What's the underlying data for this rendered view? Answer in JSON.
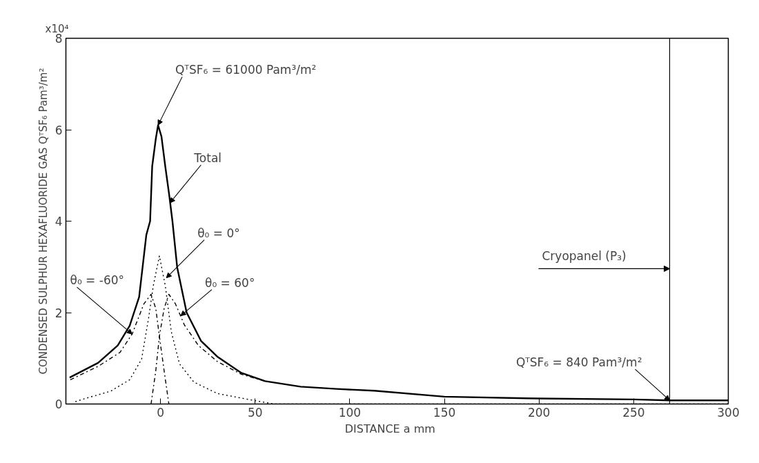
{
  "chart_data": {
    "type": "line",
    "xlabel": "DISTANCE   a   mm",
    "ylabel": "CONDENSED SULPHUR HEXAFLUORIDE GAS QᵀSF₆ Pam³/m²",
    "xlim": [
      -50,
      300
    ],
    "xticks": [
      0,
      50,
      100,
      150,
      200,
      250,
      300
    ],
    "ylim": [
      0,
      8
    ],
    "yticks": [
      0,
      2,
      4,
      6,
      8
    ],
    "grid": false,
    "marker": "none",
    "series": [
      {
        "color": "#000000",
        "line_style": "solid",
        "x": [
          -48,
          -33,
          -22.6,
          -16.3,
          -11.3,
          -7.5,
          -5.5,
          -4.4,
          -2.5,
          -1.3,
          0.5,
          2.5,
          4.5,
          6.3,
          8.8,
          13.8,
          21.4,
          30.2,
          42.7,
          55.3,
          74,
          93,
          113,
          150,
          200,
          250,
          269,
          300
        ],
        "values": [
          0.58,
          0.9,
          1.28,
          1.71,
          2.34,
          3.7,
          4.0,
          5.2,
          5.8,
          6.1,
          5.85,
          5.2,
          4.6,
          4.0,
          2.99,
          2.0,
          1.38,
          1.03,
          0.68,
          0.5,
          0.38,
          0.33,
          0.29,
          0.16,
          0.12,
          0.1,
          0.08,
          0.08
        ]
      },
      {
        "color": "#000000",
        "line_style": "dotted",
        "x": [
          -45,
          -41.5,
          -26.4,
          -16.3,
          -10,
          -6.3,
          -3.8,
          -0.6,
          2.5,
          5.7,
          10,
          17.6,
          30,
          49,
          60,
          300
        ],
        "values": [
          0.05,
          0.1,
          0.28,
          0.53,
          0.98,
          1.88,
          2.59,
          3.24,
          2.59,
          1.58,
          0.88,
          0.48,
          0.23,
          0.08,
          0,
          0
        ]
      },
      {
        "color": "#000000",
        "line_style": "dashdot",
        "x": [
          -5,
          -2.5,
          -0.6,
          1.9,
          4.4,
          7.9,
          12.6,
          20,
          30,
          42.7,
          55
        ],
        "values": [
          0,
          0.73,
          1.48,
          2.09,
          2.4,
          2.19,
          1.73,
          1.28,
          0.93,
          0.65,
          0.5
        ]
      },
      {
        "color": "#000000",
        "line_style": "dashdot",
        "x": [
          -47.7,
          -32.7,
          -21.4,
          -15,
          -8.8,
          -5,
          -2.5,
          -0.6,
          1.9,
          4.4
        ],
        "values": [
          0.53,
          0.83,
          1.13,
          1.53,
          2.19,
          2.4,
          2.09,
          1.48,
          0.73,
          0
        ]
      }
    ],
    "ref_lines": [
      {
        "axis": "x",
        "value": 269,
        "label": "Cryopanel (P₃)",
        "color": "#000000"
      }
    ],
    "annotations": [
      "x10⁴",
      {
        "text": "QᵀSF₆ = 61000 Pam³/m²",
        "x": -1.3,
        "y": 6.1
      },
      {
        "text": "Total",
        "x": 5,
        "y": 4.4
      },
      {
        "text": "θ₀ = 0°",
        "x": 3.1,
        "y": 2.76
      },
      {
        "text": "θ₀ = 60°",
        "x": 10.7,
        "y": 1.93
      },
      {
        "text": "θ₀ = -60°",
        "x": -15,
        "y": 1.53
      },
      {
        "text": "QᵀSF₆ = 840 Pam³/m²",
        "x": 269,
        "y": 0.08
      }
    ]
  }
}
